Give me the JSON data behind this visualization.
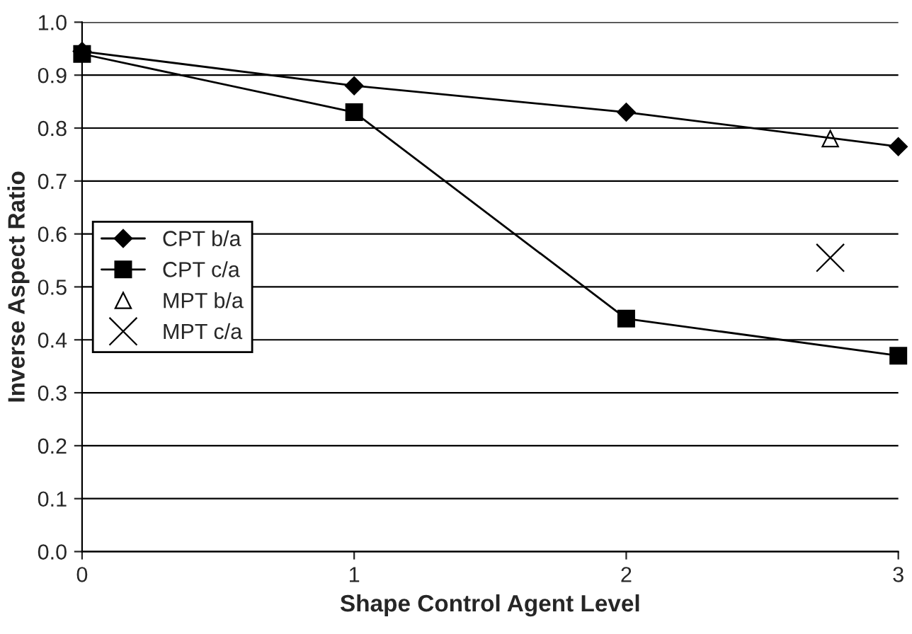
{
  "chart_data": {
    "type": "line",
    "xlabel": "Shape Control Agent Level",
    "ylabel": "Inverse Aspect Ratio",
    "xlim": [
      0,
      3
    ],
    "xticks": [
      0,
      1,
      2,
      3
    ],
    "ylim": [
      0.0,
      1.0
    ],
    "yticks": [
      {
        "value": 0,
        "label": "0.0"
      },
      {
        "value": 0.1,
        "label": "0.1"
      },
      {
        "value": 0.2,
        "label": "0.2"
      },
      {
        "value": 0.3,
        "label": "0.3"
      },
      {
        "value": 0.4,
        "label": "0.4"
      },
      {
        "value": 0.5,
        "label": "0.5"
      },
      {
        "value": 0.6,
        "label": "0.6"
      },
      {
        "value": 0.7,
        "label": "0.7"
      },
      {
        "value": 0.8,
        "label": "0.8"
      },
      {
        "value": 0.9,
        "label": "0.9"
      },
      {
        "value": 1,
        "label": "1.0"
      }
    ],
    "grid": "y",
    "legend": "center left",
    "series": [
      {
        "name": "CPT b/a",
        "marker": "diamond",
        "color": "#000000",
        "x": [
          0,
          1,
          2,
          3
        ],
        "values": [
          0.945,
          0.88,
          0.83,
          0.765
        ]
      },
      {
        "name": "CPT c/a",
        "marker": "square",
        "color": "#000000",
        "x": [
          0,
          1,
          2,
          3
        ],
        "values": [
          0.94,
          0.83,
          0.44,
          0.37
        ]
      },
      {
        "name": "MPT b/a",
        "type": "scatter",
        "marker": "triangle",
        "color": "#000000",
        "x": [
          2.75
        ],
        "values": [
          0.78
        ]
      },
      {
        "name": "MPT c/a",
        "type": "scatter",
        "marker": "cross",
        "color": "#000000",
        "x": [
          2.75
        ],
        "values": [
          0.555
        ]
      }
    ]
  }
}
